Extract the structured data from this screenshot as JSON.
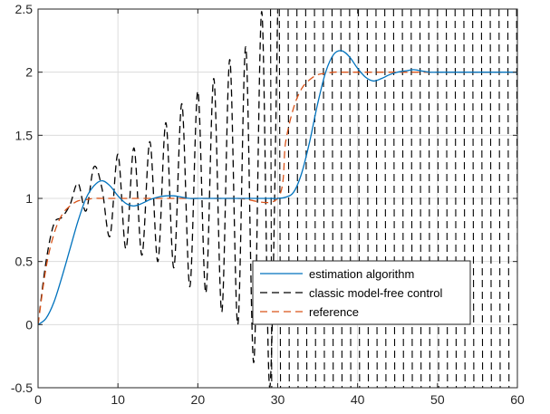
{
  "chart_data": {
    "type": "line",
    "title": "",
    "xlabel": "",
    "ylabel": "",
    "xlim": [
      0,
      60
    ],
    "ylim": [
      -0.5,
      2.5
    ],
    "xticks": [
      0,
      10,
      20,
      30,
      40,
      50,
      60
    ],
    "yticks": [
      -0.5,
      0,
      0.5,
      1,
      1.5,
      2,
      2.5
    ],
    "xtick_labels": [
      "0",
      "10",
      "20",
      "30",
      "40",
      "50",
      "60"
    ],
    "ytick_labels": [
      "-0.5",
      "0",
      "0.5",
      "1",
      "1.5",
      "2",
      "2.5"
    ],
    "grid": true,
    "legend_position": "bottom-right",
    "series": [
      {
        "name": "estimation algorithm",
        "color": "#0072BD",
        "style": "solid",
        "x": [
          0,
          1,
          2,
          3,
          4,
          5,
          6,
          7,
          8,
          9,
          10,
          11,
          12,
          13,
          14,
          15,
          16,
          17,
          18,
          19,
          20,
          21,
          22,
          23,
          24,
          25,
          26,
          27,
          28,
          29,
          30,
          31,
          32,
          33,
          34,
          35,
          36,
          37,
          38,
          39,
          40,
          41,
          42,
          43,
          44,
          45,
          46,
          47,
          48,
          49,
          50,
          52,
          54,
          56,
          58,
          60
        ],
        "y": [
          0,
          0.05,
          0.18,
          0.38,
          0.6,
          0.82,
          1.0,
          1.1,
          1.14,
          1.1,
          1.02,
          0.96,
          0.94,
          0.96,
          0.99,
          1.01,
          1.02,
          1.02,
          1.01,
          1.0,
          1.0,
          1.0,
          1.0,
          1.0,
          1.0,
          1.0,
          1.0,
          1.0,
          1.0,
          1.0,
          1.0,
          1.01,
          1.05,
          1.2,
          1.45,
          1.75,
          2.0,
          2.14,
          2.17,
          2.12,
          2.03,
          1.96,
          1.93,
          1.95,
          1.98,
          2.0,
          2.01,
          2.02,
          2.01,
          2.0,
          2.0,
          2.0,
          2.0,
          2.0,
          2.0,
          2.0
        ]
      },
      {
        "name": "classic model-free control",
        "color": "#000000",
        "style": "dashed",
        "x": [
          0,
          1,
          2,
          3,
          4,
          5,
          6,
          7,
          8,
          9,
          10,
          11,
          12,
          13,
          14,
          15,
          16,
          17,
          18,
          19,
          20,
          21,
          22,
          23,
          24,
          25,
          26,
          27,
          28,
          29,
          30
        ],
        "y": [
          0,
          0.5,
          0.8,
          0.85,
          0.95,
          1.12,
          0.9,
          1.25,
          1.08,
          0.7,
          1.35,
          0.6,
          1.4,
          0.55,
          1.45,
          0.5,
          1.6,
          0.45,
          1.75,
          0.3,
          1.85,
          0.25,
          1.95,
          0.1,
          2.1,
          0.0,
          2.2,
          -0.3,
          2.48,
          -0.5,
          2.5
        ],
        "oscillation_after_x": 28,
        "oscillation_range": [
          -0.5,
          2.5
        ],
        "oscillation_spacing": 1.1
      },
      {
        "name": "reference",
        "color": "#D95319",
        "style": "dashed",
        "x": [
          0,
          1,
          2,
          3,
          4,
          5,
          6,
          7,
          8,
          10,
          15,
          20,
          25,
          30,
          31,
          32,
          33,
          34,
          35,
          36,
          37,
          38,
          40,
          45,
          50,
          55,
          60
        ],
        "y": [
          0,
          0.45,
          0.72,
          0.87,
          0.94,
          0.98,
          0.99,
          1.0,
          1.0,
          1.0,
          1.0,
          1.0,
          1.0,
          1.0,
          1.45,
          1.72,
          1.87,
          1.94,
          1.98,
          1.99,
          2.0,
          2.0,
          2.0,
          2.0,
          2.0,
          2.0,
          2.0
        ]
      }
    ]
  }
}
